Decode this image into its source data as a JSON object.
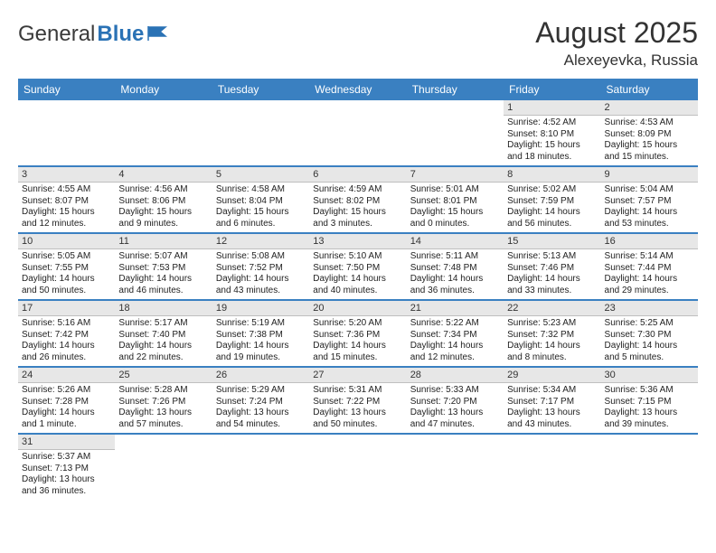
{
  "brand": {
    "part1": "General",
    "part2": "Blue"
  },
  "title": "August 2025",
  "location": "Alexeyevka, Russia",
  "colors": {
    "header_bg": "#3a80c1",
    "daynum_bg": "#e7e7e7",
    "row_border": "#3a80c1"
  },
  "weekday_labels": [
    "Sunday",
    "Monday",
    "Tuesday",
    "Wednesday",
    "Thursday",
    "Friday",
    "Saturday"
  ],
  "font": {
    "body_pt": 10,
    "header_pt": 12,
    "title_pt": 32,
    "loc_pt": 17
  },
  "grid": {
    "rows": 6,
    "cols": 7,
    "cells": [
      [
        {
          "empty": true
        },
        {
          "empty": true
        },
        {
          "empty": true
        },
        {
          "empty": true
        },
        {
          "empty": true
        },
        {
          "n": "1",
          "sr": "4:52 AM",
          "ss": "8:10 PM",
          "dl": "15 hours and 18 minutes."
        },
        {
          "n": "2",
          "sr": "4:53 AM",
          "ss": "8:09 PM",
          "dl": "15 hours and 15 minutes."
        }
      ],
      [
        {
          "n": "3",
          "sr": "4:55 AM",
          "ss": "8:07 PM",
          "dl": "15 hours and 12 minutes."
        },
        {
          "n": "4",
          "sr": "4:56 AM",
          "ss": "8:06 PM",
          "dl": "15 hours and 9 minutes."
        },
        {
          "n": "5",
          "sr": "4:58 AM",
          "ss": "8:04 PM",
          "dl": "15 hours and 6 minutes."
        },
        {
          "n": "6",
          "sr": "4:59 AM",
          "ss": "8:02 PM",
          "dl": "15 hours and 3 minutes."
        },
        {
          "n": "7",
          "sr": "5:01 AM",
          "ss": "8:01 PM",
          "dl": "15 hours and 0 minutes."
        },
        {
          "n": "8",
          "sr": "5:02 AM",
          "ss": "7:59 PM",
          "dl": "14 hours and 56 minutes."
        },
        {
          "n": "9",
          "sr": "5:04 AM",
          "ss": "7:57 PM",
          "dl": "14 hours and 53 minutes."
        }
      ],
      [
        {
          "n": "10",
          "sr": "5:05 AM",
          "ss": "7:55 PM",
          "dl": "14 hours and 50 minutes."
        },
        {
          "n": "11",
          "sr": "5:07 AM",
          "ss": "7:53 PM",
          "dl": "14 hours and 46 minutes."
        },
        {
          "n": "12",
          "sr": "5:08 AM",
          "ss": "7:52 PM",
          "dl": "14 hours and 43 minutes."
        },
        {
          "n": "13",
          "sr": "5:10 AM",
          "ss": "7:50 PM",
          "dl": "14 hours and 40 minutes."
        },
        {
          "n": "14",
          "sr": "5:11 AM",
          "ss": "7:48 PM",
          "dl": "14 hours and 36 minutes."
        },
        {
          "n": "15",
          "sr": "5:13 AM",
          "ss": "7:46 PM",
          "dl": "14 hours and 33 minutes."
        },
        {
          "n": "16",
          "sr": "5:14 AM",
          "ss": "7:44 PM",
          "dl": "14 hours and 29 minutes."
        }
      ],
      [
        {
          "n": "17",
          "sr": "5:16 AM",
          "ss": "7:42 PM",
          "dl": "14 hours and 26 minutes."
        },
        {
          "n": "18",
          "sr": "5:17 AM",
          "ss": "7:40 PM",
          "dl": "14 hours and 22 minutes."
        },
        {
          "n": "19",
          "sr": "5:19 AM",
          "ss": "7:38 PM",
          "dl": "14 hours and 19 minutes."
        },
        {
          "n": "20",
          "sr": "5:20 AM",
          "ss": "7:36 PM",
          "dl": "14 hours and 15 minutes."
        },
        {
          "n": "21",
          "sr": "5:22 AM",
          "ss": "7:34 PM",
          "dl": "14 hours and 12 minutes."
        },
        {
          "n": "22",
          "sr": "5:23 AM",
          "ss": "7:32 PM",
          "dl": "14 hours and 8 minutes."
        },
        {
          "n": "23",
          "sr": "5:25 AM",
          "ss": "7:30 PM",
          "dl": "14 hours and 5 minutes."
        }
      ],
      [
        {
          "n": "24",
          "sr": "5:26 AM",
          "ss": "7:28 PM",
          "dl": "14 hours and 1 minute."
        },
        {
          "n": "25",
          "sr": "5:28 AM",
          "ss": "7:26 PM",
          "dl": "13 hours and 57 minutes."
        },
        {
          "n": "26",
          "sr": "5:29 AM",
          "ss": "7:24 PM",
          "dl": "13 hours and 54 minutes."
        },
        {
          "n": "27",
          "sr": "5:31 AM",
          "ss": "7:22 PM",
          "dl": "13 hours and 50 minutes."
        },
        {
          "n": "28",
          "sr": "5:33 AM",
          "ss": "7:20 PM",
          "dl": "13 hours and 47 minutes."
        },
        {
          "n": "29",
          "sr": "5:34 AM",
          "ss": "7:17 PM",
          "dl": "13 hours and 43 minutes."
        },
        {
          "n": "30",
          "sr": "5:36 AM",
          "ss": "7:15 PM",
          "dl": "13 hours and 39 minutes."
        }
      ],
      [
        {
          "n": "31",
          "sr": "5:37 AM",
          "ss": "7:13 PM",
          "dl": "13 hours and 36 minutes."
        },
        {
          "empty": true
        },
        {
          "empty": true
        },
        {
          "empty": true
        },
        {
          "empty": true
        },
        {
          "empty": true
        },
        {
          "empty": true
        }
      ]
    ]
  },
  "labels": {
    "sunrise": "Sunrise:",
    "sunset": "Sunset:",
    "daylight": "Daylight:"
  }
}
